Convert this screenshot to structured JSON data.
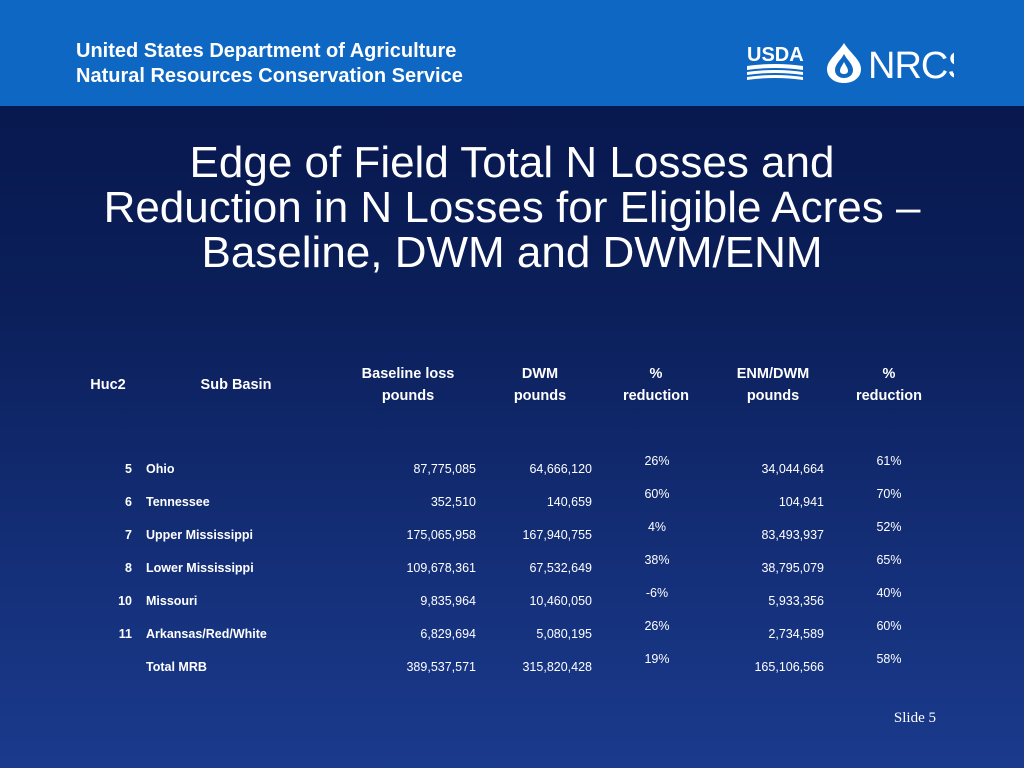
{
  "header": {
    "org_line1": "United States Department of Agriculture",
    "org_line2": "Natural Resources Conservation Service",
    "usda_logo_text": "USDA",
    "nrcs_logo_text": "NRCS"
  },
  "title": {
    "line1": "Edge of Field Total N Losses and",
    "line2": "Reduction in N Losses for Eligible Acres –",
    "line3": "Baseline, DWM and DWM/ENM"
  },
  "table": {
    "columns": [
      {
        "line1": "Huc2",
        "line2": ""
      },
      {
        "line1": "Sub Basin",
        "line2": ""
      },
      {
        "line1": "Baseline loss",
        "line2": "pounds"
      },
      {
        "line1": "DWM",
        "line2": "pounds"
      },
      {
        "line1": "%",
        "line2": "reduction"
      },
      {
        "line1": "ENM/DWM",
        "line2": "pounds"
      },
      {
        "line1": "%",
        "line2": "reduction"
      }
    ],
    "rows": [
      {
        "huc2": "5",
        "sub_basin": "Ohio",
        "baseline": "87,775,085",
        "dwm": "64,666,120",
        "dwm_reduction": "26%",
        "enm_dwm": "34,044,664",
        "enm_reduction": "61%"
      },
      {
        "huc2": "6",
        "sub_basin": "Tennessee",
        "baseline": "352,510",
        "dwm": "140,659",
        "dwm_reduction": "60%",
        "enm_dwm": "104,941",
        "enm_reduction": "70%"
      },
      {
        "huc2": "7",
        "sub_basin": "Upper Mississippi",
        "baseline": "175,065,958",
        "dwm": "167,940,755",
        "dwm_reduction": "4%",
        "enm_dwm": "83,493,937",
        "enm_reduction": "52%"
      },
      {
        "huc2": "8",
        "sub_basin": "Lower Mississippi",
        "baseline": "109,678,361",
        "dwm": "67,532,649",
        "dwm_reduction": "38%",
        "enm_dwm": "38,795,079",
        "enm_reduction": "65%"
      },
      {
        "huc2": "10",
        "sub_basin": "Missouri",
        "baseline": "9,835,964",
        "dwm": "10,460,050",
        "dwm_reduction": "-6%",
        "enm_dwm": "5,933,356",
        "enm_reduction": "40%"
      },
      {
        "huc2": "11",
        "sub_basin": "Arkansas/Red/White",
        "baseline": "6,829,694",
        "dwm": "5,080,195",
        "dwm_reduction": "26%",
        "enm_dwm": "2,734,589",
        "enm_reduction": "60%"
      },
      {
        "huc2": "",
        "sub_basin": "Total MRB",
        "baseline": "389,537,571",
        "dwm": "315,820,428",
        "dwm_reduction": "19%",
        "enm_dwm": "165,106,566",
        "enm_reduction": "58%"
      }
    ]
  },
  "footer": {
    "slide_label": "Slide 5"
  }
}
